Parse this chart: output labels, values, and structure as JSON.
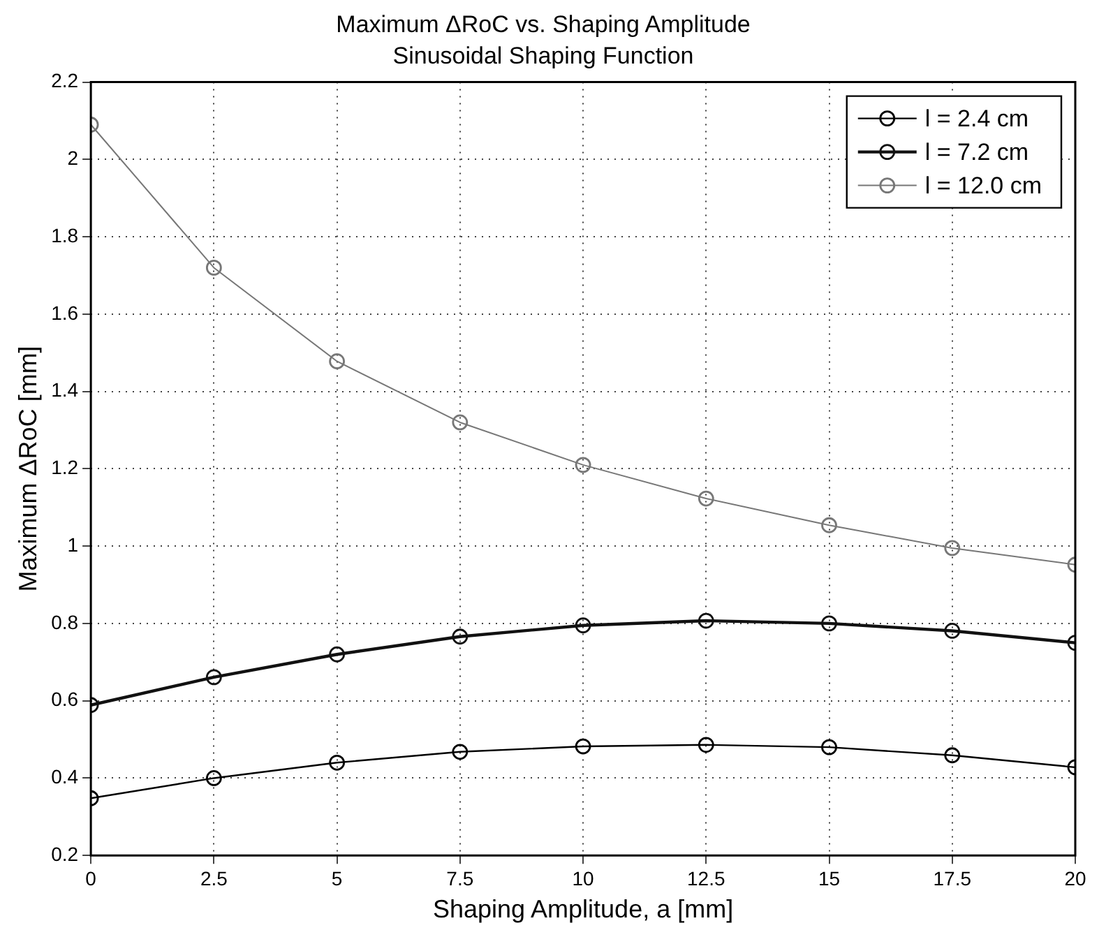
{
  "chart_data": {
    "type": "line",
    "title": "Maximum ΔRoC vs. Shaping Amplitude",
    "subtitle": "Sinusoidal Shaping Function",
    "xlabel": "Shaping Amplitude, a [mm]",
    "ylabel": "Maximum ΔRoC [mm]",
    "x": [
      0,
      2.5,
      5,
      7.5,
      10,
      12.5,
      15,
      17.5,
      20
    ],
    "series": [
      {
        "name": "l = 2.4 cm",
        "color": "#000000",
        "values": [
          0.348,
          0.4,
          0.44,
          0.468,
          0.482,
          0.486,
          0.48,
          0.459,
          0.428
        ]
      },
      {
        "name": "l = 7.2 cm",
        "color": "#111111",
        "values": [
          0.589,
          0.661,
          0.72,
          0.766,
          0.795,
          0.807,
          0.8,
          0.781,
          0.75
        ]
      },
      {
        "name": "l = 12.0 cm",
        "color": "#777777",
        "values": [
          2.09,
          1.72,
          1.478,
          1.32,
          1.21,
          1.123,
          1.054,
          0.995,
          0.952
        ]
      }
    ],
    "xlim": [
      0,
      20
    ],
    "xticks": [
      0,
      2.5,
      5,
      7.5,
      10,
      12.5,
      15,
      17.5,
      20
    ],
    "ylim": [
      0.2,
      2.2
    ],
    "yticks": [
      0.2,
      0.4,
      0.6,
      0.8,
      1,
      1.2,
      1.4,
      1.6,
      1.8,
      2,
      2.2
    ],
    "grid": true,
    "legend": "top right",
    "marker": "circle",
    "line_style": "solid"
  }
}
